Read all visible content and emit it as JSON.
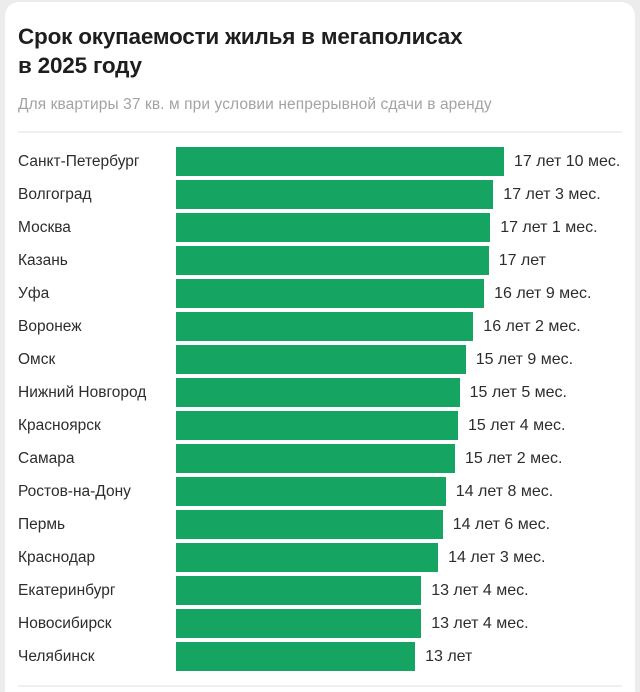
{
  "header": {
    "title_line1": "Срок окупаемости жилья в мегаполисах",
    "title_line2": "в 2025 году",
    "subtitle": "Для квартиры 37 кв. м при условии непрерывной сдачи в аренду"
  },
  "colors": {
    "bar_green": "#16a463",
    "title_text": "#1e1e1e",
    "subtitle_text": "#a3a3a3",
    "label_text": "#2d2d2d",
    "divider": "#efefef",
    "card_bg": "#ffffff",
    "page_bg": "#ececec"
  },
  "chart_data": {
    "type": "bar",
    "orientation": "horizontal",
    "title": "Срок окупаемости жилья в мегаполисах в 2025 году",
    "subtitle": "Для квартиры 37 кв. м при условии непрерывной сдачи в аренду",
    "unit": "years",
    "xlim": [
      0,
      17.8333
    ],
    "grid": false,
    "legend": false,
    "bar_color": "#16a463",
    "categories": [
      "Санкт-Петербург",
      "Волгоград",
      "Москва",
      "Казань",
      "Уфа",
      "Воронеж",
      "Омск",
      "Нижний Новгород",
      "Красноярск",
      "Самара",
      "Ростов-на-Дону",
      "Пермь",
      "Краснодар",
      "Екатеринбург",
      "Новосибирск",
      "Челябинск"
    ],
    "values": [
      17.8333,
      17.25,
      17.0833,
      17.0,
      16.75,
      16.1667,
      15.75,
      15.4167,
      15.3333,
      15.1667,
      14.6667,
      14.5,
      14.25,
      13.3333,
      13.3333,
      13.0
    ],
    "value_labels": [
      "17 лет 10 мес.",
      "17 лет 3 мес.",
      "17 лет 1 мес.",
      "17 лет",
      "16 лет 9 мес.",
      "16 лет 2 мес.",
      "15 лет 9 мес.",
      "15 лет 5 мес.",
      "15 лет 4 мес.",
      "15 лет 2 мес.",
      "14 лет 8 мес.",
      "14 лет 6 мес.",
      "14 лет 3 мес.",
      "13 лет 4 мес.",
      "13 лет 4 мес.",
      "13 лет"
    ]
  }
}
